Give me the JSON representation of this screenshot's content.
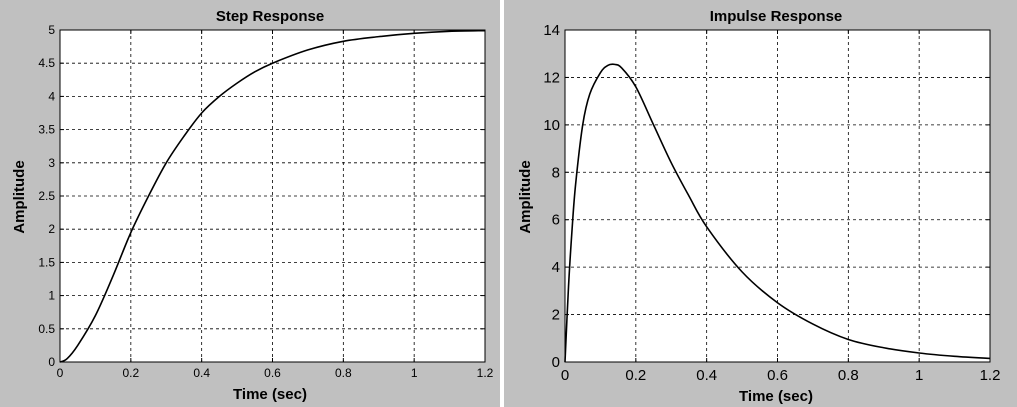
{
  "chart_data": [
    {
      "type": "line",
      "title": "Step Response",
      "xlabel": "Time (sec)",
      "ylabel": "Amplitude",
      "xlim": [
        0,
        1.2
      ],
      "ylim": [
        0,
        5
      ],
      "xticks": [
        "0",
        "0.2",
        "0.4",
        "0.6",
        "0.8",
        "1",
        "1.2"
      ],
      "yticks": [
        "0",
        "0.5",
        "1",
        "1.5",
        "2",
        "2.5",
        "3",
        "3.5",
        "4",
        "4.5",
        "5"
      ],
      "grid": true,
      "series": [
        {
          "x": [
            0,
            0.02,
            0.05,
            0.1,
            0.15,
            0.2,
            0.25,
            0.3,
            0.35,
            0.4,
            0.45,
            0.5,
            0.55,
            0.6,
            0.7,
            0.8,
            0.9,
            1.0,
            1.1,
            1.2
          ],
          "values": [
            0,
            0.05,
            0.25,
            0.7,
            1.3,
            1.95,
            2.5,
            3.0,
            3.4,
            3.75,
            4.0,
            4.2,
            4.37,
            4.5,
            4.7,
            4.83,
            4.9,
            4.95,
            4.98,
            4.99
          ]
        }
      ]
    },
    {
      "type": "line",
      "title": "Impulse Response",
      "xlabel": "Time (sec)",
      "ylabel": "Amplitude",
      "xlim": [
        0,
        1.2
      ],
      "ylim": [
        0,
        14
      ],
      "xticks": [
        "0",
        "0.2",
        "0.4",
        "0.6",
        "0.8",
        "1",
        "1.2"
      ],
      "yticks": [
        "0",
        "2",
        "4",
        "6",
        "8",
        "10",
        "12",
        "14"
      ],
      "grid": true,
      "series": [
        {
          "x": [
            0,
            0.01,
            0.02,
            0.03,
            0.05,
            0.07,
            0.1,
            0.12,
            0.14,
            0.16,
            0.2,
            0.25,
            0.3,
            0.35,
            0.4,
            0.5,
            0.6,
            0.7,
            0.8,
            0.9,
            1.0,
            1.1,
            1.2
          ],
          "values": [
            0,
            3.2,
            5.6,
            7.5,
            10.0,
            11.3,
            12.2,
            12.5,
            12.55,
            12.4,
            11.6,
            10.0,
            8.4,
            7.0,
            5.7,
            3.8,
            2.5,
            1.6,
            0.95,
            0.6,
            0.38,
            0.24,
            0.15
          ]
        }
      ]
    }
  ]
}
